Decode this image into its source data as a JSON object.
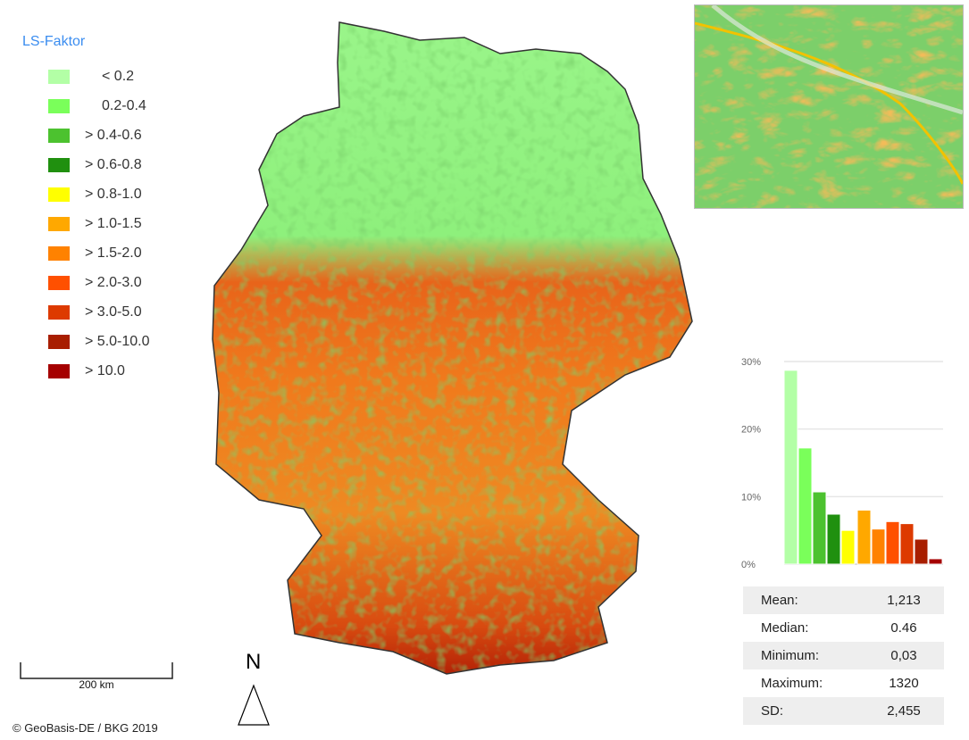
{
  "legend": {
    "title": "LS-Faktor",
    "items": [
      {
        "label": "< 0.2",
        "color": "#b3ffa6"
      },
      {
        "label": "0.2-0.4",
        "color": "#7aff5a"
      },
      {
        "label": "> 0.4-0.6",
        "color": "#4cc22f"
      },
      {
        "label": "> 0.6-0.8",
        "color": "#20900f"
      },
      {
        "label": "> 0.8-1.0",
        "color": "#ffff00"
      },
      {
        "label": "> 1.0-1.5",
        "color": "#ffa800"
      },
      {
        "label": "> 1.5-2.0",
        "color": "#ff8200"
      },
      {
        "label": "> 2.0-3.0",
        "color": "#ff5000"
      },
      {
        "label": "> 3.0-5.0",
        "color": "#dd3a00"
      },
      {
        "label": "> 5.0-10.0",
        "color": "#a81e00"
      },
      {
        "label": "> 10.0",
        "color": "#a50000"
      }
    ]
  },
  "chart_data": {
    "type": "bar",
    "categories": [
      "< 0.2",
      "0.2-0.4",
      "> 0.4-0.6",
      "> 0.6-0.8",
      "> 0.8-1.0",
      "> 1.0-1.5",
      "> 1.5-2.0",
      "> 2.0-3.0",
      "> 3.0-5.0",
      "> 5.0-10.0",
      "> 10.0"
    ],
    "values": [
      28.7,
      17.2,
      10.7,
      7.4,
      5.0,
      8.0,
      5.2,
      6.3,
      6.0,
      3.7,
      0.8
    ],
    "yticks": [
      "0%",
      "10%",
      "20%",
      "30%"
    ],
    "ylim": [
      0,
      30
    ],
    "grid": true
  },
  "stats": [
    {
      "name": "Mean:",
      "value": "1,213"
    },
    {
      "name": "Median:",
      "value": "0.46"
    },
    {
      "name": "Minimum:",
      "value": "0,03"
    },
    {
      "name": "Maximum:",
      "value": "1320"
    },
    {
      "name": "SD:",
      "value": "2,455"
    }
  ],
  "scale_bar": {
    "label": "200 km"
  },
  "north_arrow": {
    "label": "N"
  },
  "copyright": "© GeoBasis-DE / BKG 2019"
}
